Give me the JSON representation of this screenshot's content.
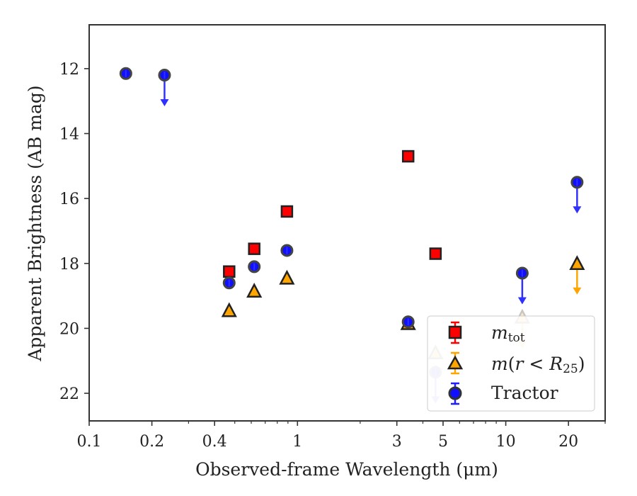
{
  "chart_data": {
    "type": "scatter",
    "xlabel": "Observed-frame Wavelength (μm)",
    "ylabel": "Apparent Brightness (AB mag)",
    "xscale": "log",
    "xlim": [
      0.1,
      30
    ],
    "ylim": [
      22.85,
      10.65
    ],
    "y_inverted": true,
    "x_ticks": [
      {
        "value": 0.1,
        "label": "0.1"
      },
      {
        "value": 0.2,
        "label": "0.2"
      },
      {
        "value": 0.4,
        "label": "0.4"
      },
      {
        "value": 1,
        "label": "1"
      },
      {
        "value": 3,
        "label": "3"
      },
      {
        "value": 5,
        "label": "5"
      },
      {
        "value": 10,
        "label": "10"
      },
      {
        "value": 20,
        "label": "20"
      }
    ],
    "y_ticks": [
      12,
      14,
      16,
      18,
      20,
      22
    ],
    "legend_position": "lower right",
    "series": [
      {
        "name": "m_tot",
        "marker": "square",
        "color": "#ff0000",
        "points": [
          {
            "x": 0.47,
            "y": 18.25
          },
          {
            "x": 0.62,
            "y": 17.55
          },
          {
            "x": 0.89,
            "y": 16.4
          },
          {
            "x": 3.4,
            "y": 14.7
          },
          {
            "x": 4.6,
            "y": 17.7
          }
        ]
      },
      {
        "name": "m(r<R25)",
        "marker": "triangle",
        "color": "#ffa500",
        "points": [
          {
            "x": 0.47,
            "y": 19.45
          },
          {
            "x": 0.62,
            "y": 18.85
          },
          {
            "x": 0.89,
            "y": 18.45
          },
          {
            "x": 3.4,
            "y": 19.85
          },
          {
            "x": 4.6,
            "y": 20.75,
            "faded": true
          },
          {
            "x": 12,
            "y": 19.65,
            "upper_limit": true,
            "faded": true
          },
          {
            "x": 22,
            "y": 18.0,
            "upper_limit": true
          }
        ]
      },
      {
        "name": "Tractor",
        "marker": "circle",
        "color": "#0000ff",
        "points": [
          {
            "x": 0.15,
            "y": 12.15
          },
          {
            "x": 0.23,
            "y": 12.2,
            "upper_limit": true
          },
          {
            "x": 0.47,
            "y": 18.6
          },
          {
            "x": 0.62,
            "y": 18.1
          },
          {
            "x": 0.89,
            "y": 17.6
          },
          {
            "x": 3.4,
            "y": 19.8
          },
          {
            "x": 4.6,
            "y": 21.35,
            "upper_limit": true,
            "faded": true
          },
          {
            "x": 12,
            "y": 18.3,
            "upper_limit": true
          },
          {
            "x": 22,
            "y": 15.5,
            "upper_limit": true
          }
        ]
      }
    ]
  },
  "legend": {
    "mtot_main": "m",
    "mtot_sub": "tot",
    "mr_part1": "m",
    "mr_part2": "(",
    "mr_part3": "r",
    "mr_part4": " < ",
    "mr_part5": "R",
    "mr_part6": "25",
    "mr_part7": ")",
    "tractor": "Tractor"
  }
}
